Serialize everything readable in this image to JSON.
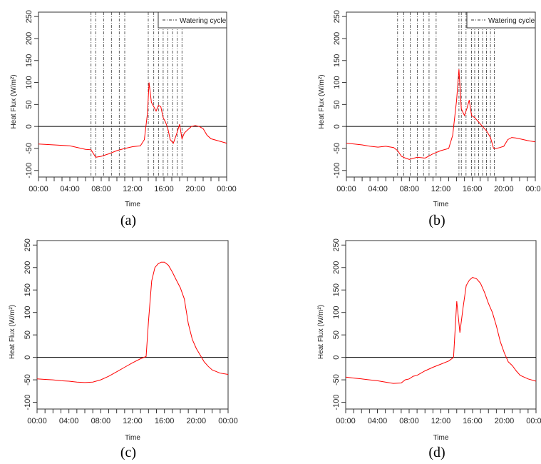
{
  "figure": {
    "captions": [
      "(a)",
      "(b)",
      "(c)",
      "(d)"
    ]
  },
  "chart_data": [
    {
      "type": "line",
      "panel": "(a)",
      "xlabel": "Time",
      "ylabel": "Heat Flux (W/m²)",
      "xticks": [
        "00:00",
        "04:00",
        "08:00",
        "12:00",
        "16:00",
        "20:00",
        "00:00"
      ],
      "xlim": [
        0,
        24
      ],
      "ylim": [
        -115,
        260
      ],
      "yticks": [
        -100,
        -50,
        0,
        50,
        100,
        150,
        200,
        250
      ],
      "hline": 0,
      "legend": {
        "label": "Watering cycle",
        "position": "top-right"
      },
      "watering_cycles": [
        6.7,
        7.3,
        8.3,
        9.3,
        10.3,
        11.0,
        14.0,
        14.7,
        15.3,
        15.9,
        16.5,
        17.1,
        17.7,
        18.3
      ],
      "series": [
        {
          "color": "#ff0000",
          "x": [
            0,
            1,
            2,
            3,
            4,
            5,
            6,
            6.7,
            7.3,
            8,
            9,
            10,
            11,
            12,
            13,
            13.5,
            13.9,
            14.1,
            14.4,
            14.7,
            15.0,
            15.3,
            15.6,
            15.9,
            16.2,
            16.5,
            16.8,
            17.2,
            17.6,
            18.0,
            18.3,
            18.6,
            19.0,
            19.5,
            20.0,
            20.5,
            21.0,
            21.5,
            22,
            23,
            24
          ],
          "y": [
            -40,
            -41,
            -42,
            -43,
            -44,
            -48,
            -52,
            -53,
            -70,
            -68,
            -62,
            -55,
            -50,
            -46,
            -44,
            -30,
            30,
            100,
            55,
            45,
            35,
            48,
            45,
            20,
            10,
            -5,
            -30,
            -38,
            -18,
            5,
            -28,
            -15,
            -8,
            0,
            2,
            0,
            -5,
            -20,
            -28,
            -33,
            -38
          ]
        }
      ]
    },
    {
      "type": "line",
      "panel": "(b)",
      "xlabel": "Time",
      "ylabel": "Heat Flux (W/m²)",
      "xticks": [
        "00:00",
        "04:00",
        "08:00",
        "12:00",
        "16:00",
        "20:00",
        "00:00"
      ],
      "xlim": [
        0,
        24
      ],
      "ylim": [
        -115,
        260
      ],
      "yticks": [
        -100,
        -50,
        0,
        50,
        100,
        150,
        200,
        250
      ],
      "hline": 0,
      "legend": {
        "label": "Watering cycle",
        "position": "top-right"
      },
      "watering_cycles": [
        6.5,
        7.3,
        8.1,
        9.0,
        9.8,
        10.5,
        11.4,
        14.3,
        14.6,
        15.2,
        15.9,
        16.3,
        16.8,
        17.3,
        17.8,
        18.3,
        18.8
      ],
      "series": [
        {
          "color": "#ff0000",
          "x": [
            0,
            1,
            2,
            3,
            4,
            5,
            6,
            6.5,
            7.0,
            7.5,
            8,
            9,
            10,
            11,
            12,
            13,
            13.5,
            14.0,
            14.3,
            14.6,
            15.0,
            15.3,
            15.6,
            15.9,
            16.3,
            16.8,
            17.3,
            17.8,
            18.3,
            18.7,
            19.0,
            19.5,
            20.0,
            20.5,
            21.0,
            21.5,
            22,
            23,
            24
          ],
          "y": [
            -38,
            -40,
            -42,
            -45,
            -47,
            -45,
            -48,
            -55,
            -68,
            -72,
            -75,
            -70,
            -72,
            -62,
            -55,
            -50,
            -20,
            60,
            130,
            40,
            25,
            40,
            60,
            25,
            20,
            10,
            0,
            -10,
            -25,
            -50,
            -50,
            -48,
            -45,
            -30,
            -25,
            -26,
            -28,
            -32,
            -35
          ]
        }
      ]
    },
    {
      "type": "line",
      "panel": "(c)",
      "xlabel": "Time",
      "ylabel": "Heat Flux (W/m²)",
      "xticks": [
        "00:00",
        "04:00",
        "08:00",
        "12:00",
        "16:00",
        "20:00",
        "00:00"
      ],
      "xlim": [
        0,
        24
      ],
      "ylim": [
        -115,
        260
      ],
      "yticks": [
        -100,
        -50,
        0,
        50,
        100,
        150,
        200,
        250
      ],
      "hline": 0,
      "series": [
        {
          "color": "#ff0000",
          "x": [
            0,
            1,
            2,
            3,
            4,
            5,
            6,
            7,
            8,
            9,
            10,
            11,
            12,
            13,
            13.7,
            14.0,
            14.4,
            14.8,
            15.2,
            15.6,
            16.0,
            16.5,
            17.0,
            17.5,
            18.0,
            18.5,
            19.0,
            19.5,
            20.0,
            20.5,
            21.0,
            21.5,
            22,
            23,
            24
          ],
          "y": [
            -48,
            -49,
            -50,
            -52,
            -53,
            -55,
            -56,
            -55,
            -50,
            -42,
            -32,
            -22,
            -12,
            -3,
            2,
            80,
            170,
            200,
            208,
            212,
            212,
            205,
            190,
            172,
            155,
            130,
            75,
            40,
            20,
            5,
            -10,
            -20,
            -28,
            -35,
            -38
          ]
        }
      ]
    },
    {
      "type": "line",
      "panel": "(d)",
      "xlabel": "Time",
      "ylabel": "Heat Flux (W/m²)",
      "xticks": [
        "00:00",
        "04:00",
        "08:00",
        "12:00",
        "16:00",
        "20:00",
        "00:00"
      ],
      "xlim": [
        0,
        24
      ],
      "ylim": [
        -115,
        260
      ],
      "yticks": [
        -100,
        -50,
        0,
        50,
        100,
        150,
        200,
        250
      ],
      "hline": 0,
      "series": [
        {
          "color": "#ff0000",
          "x": [
            0,
            1,
            2,
            3,
            4,
            5,
            6,
            7,
            7.5,
            8,
            8.5,
            9,
            10,
            11,
            12,
            13,
            13.6,
            14.0,
            14.4,
            14.8,
            15.2,
            15.6,
            16.0,
            16.5,
            17.0,
            17.5,
            18.0,
            18.5,
            19.0,
            19.5,
            20.0,
            20.5,
            21.0,
            21.5,
            22,
            23,
            24
          ],
          "y": [
            -44,
            -46,
            -48,
            -50,
            -52,
            -55,
            -58,
            -57,
            -50,
            -48,
            -42,
            -40,
            -30,
            -22,
            -15,
            -8,
            0,
            125,
            55,
            110,
            160,
            172,
            178,
            175,
            165,
            145,
            120,
            100,
            70,
            35,
            10,
            -10,
            -18,
            -30,
            -40,
            -48,
            -53
          ]
        }
      ]
    }
  ]
}
